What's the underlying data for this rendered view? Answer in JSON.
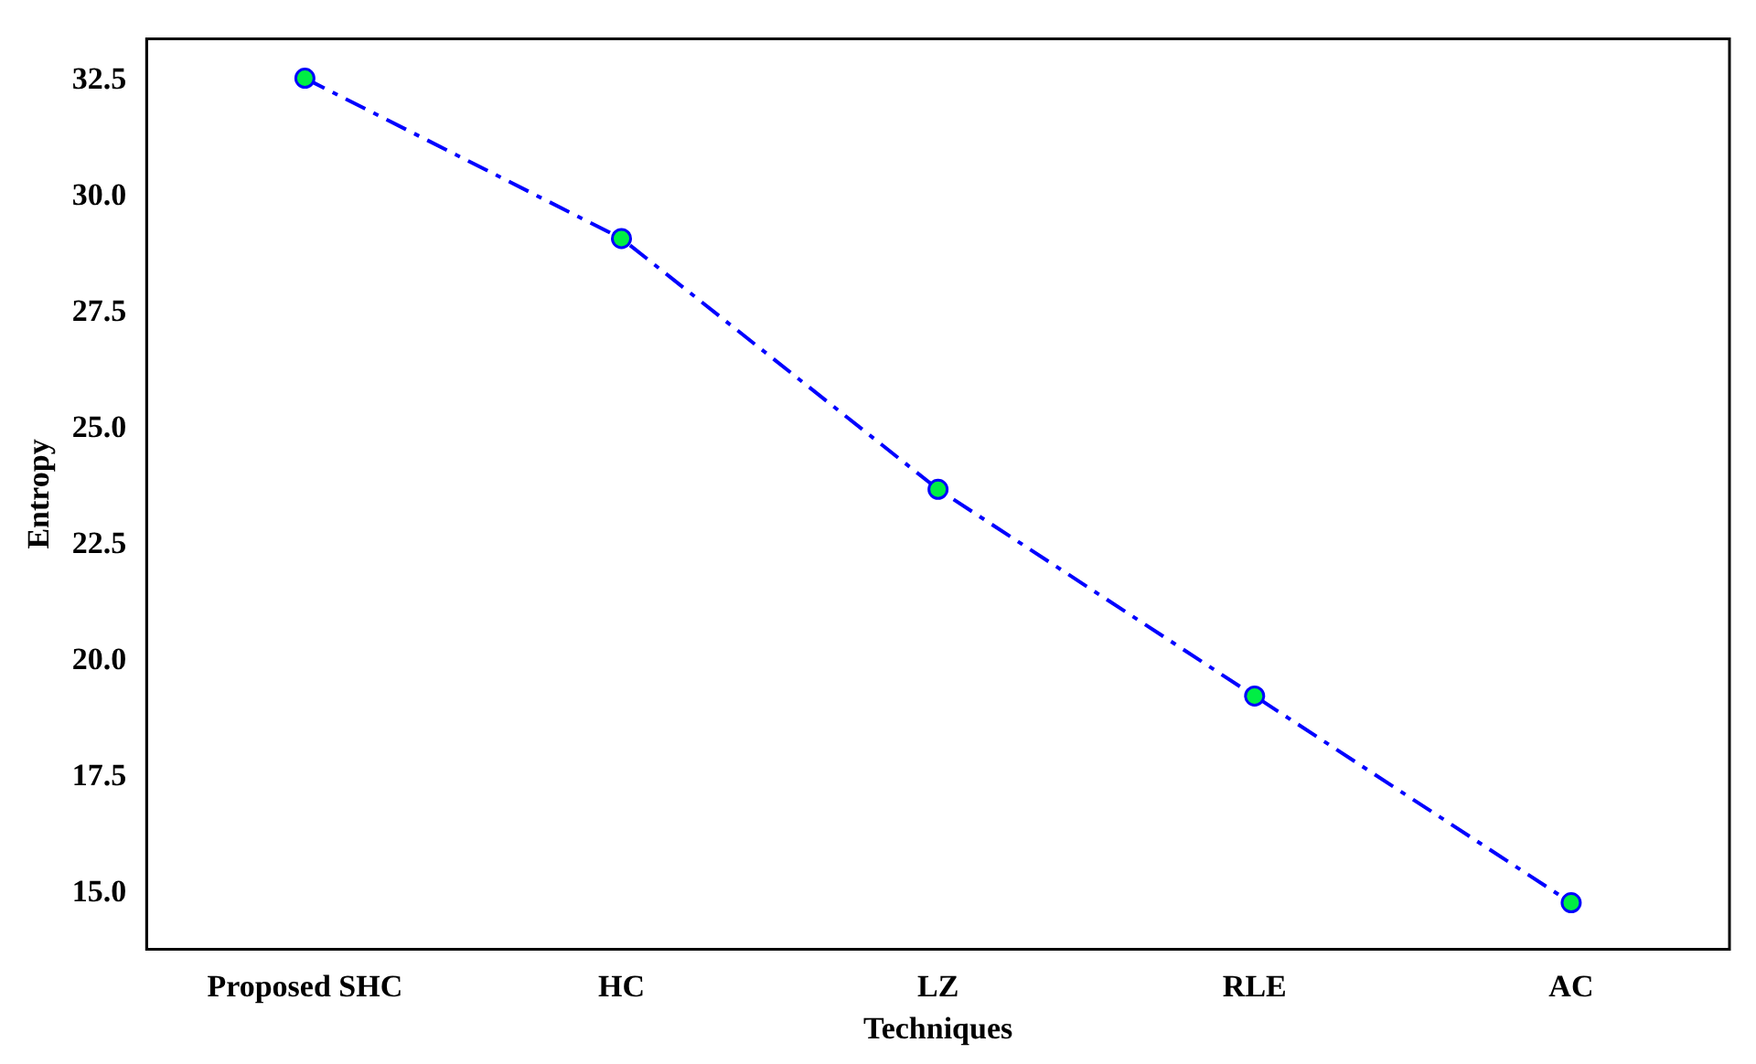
{
  "chart_data": {
    "type": "line",
    "xlabel": "Techniques",
    "ylabel": "Entropy",
    "categories": [
      "Proposed SHC",
      "HC",
      "LZ",
      "RLE",
      "AC"
    ],
    "series": [
      {
        "color": "#0000ff",
        "values": [
          32.55,
          29.1,
          23.7,
          19.25,
          14.8
        ]
      }
    ],
    "ylim": [
      13.8,
      33.4
    ],
    "yticks": [
      {
        "value": 15,
        "label": "15.0"
      },
      {
        "value": 17.5,
        "label": "17.5"
      },
      {
        "value": 20,
        "label": "20.0"
      },
      {
        "value": 22.5,
        "label": "22.5"
      },
      {
        "value": 25,
        "label": "25.0"
      },
      {
        "value": 27.5,
        "label": "27.5"
      },
      {
        "value": 30,
        "label": "30.0"
      },
      {
        "value": 32.5,
        "label": "32.5"
      }
    ],
    "grid": false,
    "legend": false,
    "marker": "circle",
    "line_style": "dashed"
  }
}
